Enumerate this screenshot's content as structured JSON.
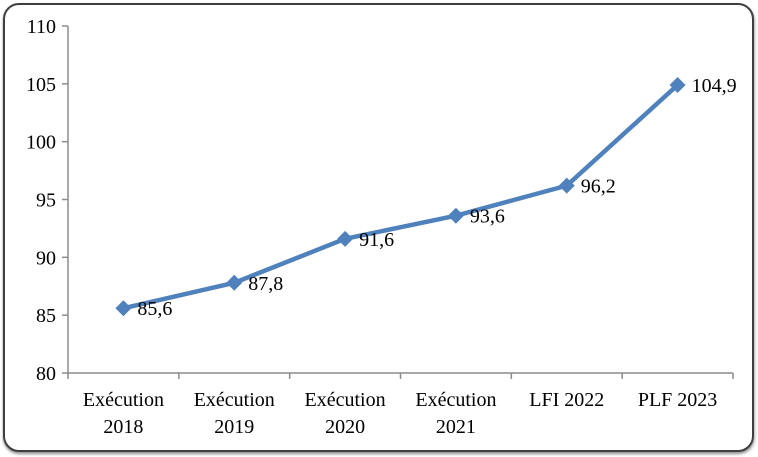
{
  "chart_data": {
    "type": "line",
    "categories": [
      "Exécution\n2018",
      "Exécution\n2019",
      "Exécution\n2020",
      "Exécution\n2021",
      "LFI 2022",
      "PLF 2023"
    ],
    "values": [
      85.6,
      87.8,
      91.6,
      93.6,
      96.2,
      104.9
    ],
    "point_labels": [
      "85,6",
      "87,8",
      "91,6",
      "93,6",
      "96,2",
      "104,9"
    ],
    "yticks": [
      80,
      85,
      90,
      95,
      100,
      105,
      110
    ],
    "ytick_labels": [
      "80",
      "85",
      "90",
      "95",
      "100",
      "105",
      "110"
    ],
    "ylim": [
      80,
      110
    ],
    "title": "",
    "xlabel": "",
    "ylabel": "",
    "grid": false,
    "legend": "none",
    "marker": "diamond"
  },
  "colors": {
    "line": "#4F81BD",
    "marker": "#4F81BD",
    "axis": "#8C8C8C",
    "text": "#000000",
    "frame_border": "#3F3F3F",
    "background": "#FFFFFF"
  }
}
